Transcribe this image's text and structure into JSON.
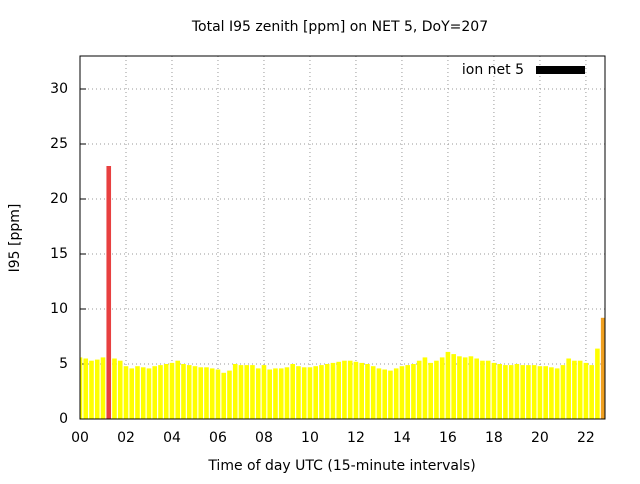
{
  "chart_data": {
    "type": "bar",
    "title": "Total I95 zenith [ppm] on NET 5, DoY=207",
    "x_label": "Time of day UTC (15-minute intervals)",
    "y_label": "I95 [ppm]",
    "x": [
      0,
      0.25,
      0.5,
      0.75,
      1,
      1.25,
      1.5,
      1.75,
      2,
      2.25,
      2.5,
      2.75,
      3,
      3.25,
      3.5,
      3.75,
      4,
      4.25,
      4.5,
      4.75,
      5,
      5.25,
      5.5,
      5.75,
      6,
      6.25,
      6.5,
      6.75,
      7,
      7.25,
      7.5,
      7.75,
      8,
      8.25,
      8.5,
      8.75,
      9,
      9.25,
      9.5,
      9.75,
      10,
      10.25,
      10.5,
      10.75,
      11,
      11.25,
      11.5,
      11.75,
      12,
      12.25,
      12.5,
      12.75,
      13,
      13.25,
      13.5,
      13.75,
      14,
      14.25,
      14.5,
      14.75,
      15,
      15.25,
      15.5,
      15.75,
      16,
      16.25,
      16.5,
      16.75,
      17,
      17.25,
      17.5,
      17.75,
      18,
      18.25,
      18.5,
      18.75,
      19,
      19.25,
      19.5,
      19.75,
      20,
      20.25,
      20.5,
      20.75,
      21,
      21.25,
      21.5,
      21.75,
      22,
      22.25,
      22.5,
      22.75
    ],
    "series": [
      {
        "name": "ion net 5",
        "color": "#000000",
        "values": [
          5.6,
          5.5,
          5.3,
          5.4,
          5.6,
          23,
          5.5,
          5.3,
          4.8,
          4.6,
          4.8,
          4.7,
          4.6,
          4.8,
          4.9,
          5.0,
          5.1,
          5.3,
          5.0,
          4.9,
          4.8,
          4.7,
          4.7,
          4.6,
          4.5,
          4.2,
          4.4,
          5.0,
          4.9,
          4.9,
          4.9,
          4.6,
          4.9,
          4.5,
          4.6,
          4.6,
          4.7,
          5.0,
          4.8,
          4.7,
          4.7,
          4.8,
          4.9,
          5.0,
          5.1,
          5.2,
          5.3,
          5.3,
          5.2,
          5.1,
          5.0,
          4.8,
          4.6,
          4.5,
          4.4,
          4.6,
          4.8,
          4.9,
          5.0,
          5.3,
          5.6,
          5.1,
          5.3,
          5.6,
          6.1,
          5.9,
          5.7,
          5.6,
          5.7,
          5.5,
          5.3,
          5.3,
          5.1,
          5.0,
          4.9,
          4.9,
          5.0,
          4.9,
          4.9,
          4.9,
          4.8,
          4.8,
          4.7,
          4.6,
          4.9,
          5.5,
          5.3,
          5.3,
          5.1,
          4.9,
          6.4,
          9.2
        ],
        "colors": [
          "#ffff00",
          "#ffff00",
          "#ffff00",
          "#ffff00",
          "#ffff00",
          "#e84040",
          "#ffff00",
          "#ffff00",
          "#ffff00",
          "#ffff00",
          "#ffff00",
          "#ffff00",
          "#ffff00",
          "#ffff00",
          "#ffff00",
          "#ffff00",
          "#ffff00",
          "#ffff00",
          "#ffff00",
          "#ffff00",
          "#ffff00",
          "#ffff00",
          "#ffff00",
          "#ffff00",
          "#ffff00",
          "#ffff00",
          "#ffff00",
          "#ffff00",
          "#ffff00",
          "#ffff00",
          "#ffff00",
          "#ffff00",
          "#ffff00",
          "#ffff00",
          "#ffff00",
          "#ffff00",
          "#ffff00",
          "#ffff00",
          "#ffff00",
          "#ffff00",
          "#ffff00",
          "#ffff00",
          "#ffff00",
          "#ffff00",
          "#ffff00",
          "#ffff00",
          "#ffff00",
          "#ffff00",
          "#ffff00",
          "#ffff00",
          "#ffff00",
          "#ffff00",
          "#ffff00",
          "#ffff00",
          "#ffff00",
          "#ffff00",
          "#ffff00",
          "#ffff00",
          "#ffff00",
          "#ffff00",
          "#ffff00",
          "#ffff00",
          "#ffff00",
          "#ffff00",
          "#ffff00",
          "#ffff00",
          "#ffff00",
          "#ffff00",
          "#ffff00",
          "#ffff00",
          "#ffff00",
          "#ffff00",
          "#ffff00",
          "#ffff00",
          "#ffff00",
          "#ffff00",
          "#ffff00",
          "#ffff00",
          "#ffff00",
          "#ffff00",
          "#ffff00",
          "#ffff00",
          "#ffff00",
          "#ffff00",
          "#ffff00",
          "#ffff00",
          "#ffff00",
          "#ffff00",
          "#ffff00",
          "#ffff00",
          "#ffff00",
          "#f0a020"
        ]
      }
    ],
    "xlim": [
      0,
      22.83
    ],
    "xticks": [
      {
        "value": 0,
        "label": "00"
      },
      {
        "value": 2,
        "label": "02"
      },
      {
        "value": 4,
        "label": "04"
      },
      {
        "value": 6,
        "label": "06"
      },
      {
        "value": 8,
        "label": "08"
      },
      {
        "value": 10,
        "label": "10"
      },
      {
        "value": 12,
        "label": "12"
      },
      {
        "value": 14,
        "label": "14"
      },
      {
        "value": 16,
        "label": "16"
      },
      {
        "value": 18,
        "label": "18"
      },
      {
        "value": 20,
        "label": "20"
      },
      {
        "value": 22,
        "label": "22"
      }
    ],
    "ylim": [
      0,
      33
    ],
    "yticks": [
      0,
      5,
      10,
      15,
      20,
      25,
      30
    ],
    "grid": true,
    "legend": "upper right"
  }
}
